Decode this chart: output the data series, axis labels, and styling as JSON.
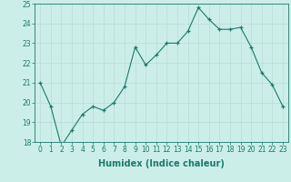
{
  "x": [
    0,
    1,
    2,
    3,
    4,
    5,
    6,
    7,
    8,
    9,
    10,
    11,
    12,
    13,
    14,
    15,
    16,
    17,
    18,
    19,
    20,
    21,
    22,
    23
  ],
  "y": [
    21.0,
    19.8,
    17.8,
    18.6,
    19.4,
    19.8,
    19.6,
    20.0,
    20.8,
    22.8,
    21.9,
    22.4,
    23.0,
    23.0,
    23.6,
    24.8,
    24.2,
    23.7,
    23.7,
    23.8,
    22.8,
    21.5,
    20.9,
    19.8
  ],
  "xlabel": "Humidex (Indice chaleur)",
  "ylim": [
    18,
    25
  ],
  "xlim": [
    -0.5,
    23.5
  ],
  "yticks": [
    18,
    19,
    20,
    21,
    22,
    23,
    24,
    25
  ],
  "xticks": [
    0,
    1,
    2,
    3,
    4,
    5,
    6,
    7,
    8,
    9,
    10,
    11,
    12,
    13,
    14,
    15,
    16,
    17,
    18,
    19,
    20,
    21,
    22,
    23
  ],
  "line_color": "#1a7a6a",
  "marker_color": "#1a7a6a",
  "bg_color": "#cceee8",
  "grid_color": "#b8dcd8",
  "axis_color": "#1a7a6a",
  "tick_color": "#1a7a6a",
  "label_color": "#1a7a6a",
  "tick_fontsize": 5.5,
  "xlabel_fontsize": 7
}
